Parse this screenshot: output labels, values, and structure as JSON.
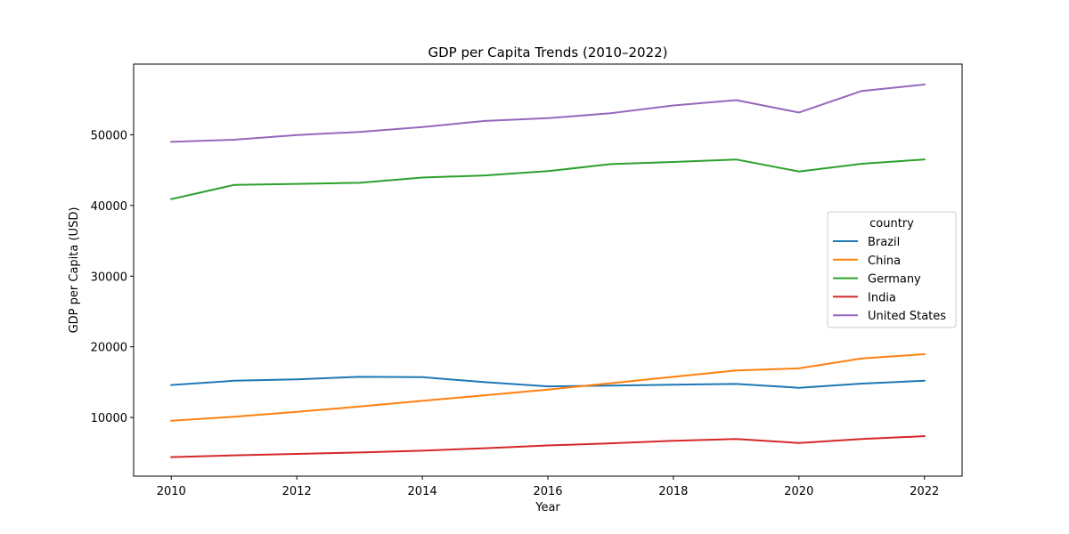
{
  "chart_data": {
    "type": "line",
    "title": "GDP per Capita Trends (2010–2022)",
    "xlabel": "Year",
    "ylabel": "GDP per Capita (USD)",
    "xlim": [
      2009.4,
      2022.6
    ],
    "ylim": [
      1700,
      60000
    ],
    "xticks": [
      2010,
      2012,
      2014,
      2016,
      2018,
      2020,
      2022
    ],
    "yticks": [
      10000,
      20000,
      30000,
      40000,
      50000
    ],
    "grid": false,
    "legend": {
      "title": "country",
      "placement": "center-right"
    },
    "x": [
      2010,
      2011,
      2012,
      2013,
      2014,
      2015,
      2016,
      2017,
      2018,
      2019,
      2020,
      2021,
      2022
    ],
    "series": [
      {
        "name": "Brazil",
        "color": "#1f77b4",
        "values": [
          14600,
          15200,
          15400,
          15750,
          15700,
          15000,
          14400,
          14500,
          14650,
          14750,
          14200,
          14800,
          15200
        ]
      },
      {
        "name": "China",
        "color": "#ff7f0e",
        "values": [
          9550,
          10100,
          10800,
          11550,
          12350,
          13150,
          13950,
          14850,
          15750,
          16650,
          16950,
          18350,
          18950
        ]
      },
      {
        "name": "Germany",
        "color": "#2ca02c",
        "values": [
          40900,
          42900,
          43050,
          43200,
          43950,
          44250,
          44850,
          45850,
          46150,
          46500,
          44800,
          45900,
          46500
        ]
      },
      {
        "name": "India",
        "color": "#d62728",
        "values": [
          4400,
          4650,
          4850,
          5050,
          5300,
          5650,
          6050,
          6350,
          6700,
          6950,
          6400,
          6950,
          7350
        ]
      },
      {
        "name": "United States",
        "color": "#9467bd",
        "values": [
          49000,
          49300,
          49950,
          50400,
          51100,
          51950,
          52350,
          53050,
          54150,
          54900,
          53150,
          56200,
          57100
        ]
      }
    ]
  }
}
